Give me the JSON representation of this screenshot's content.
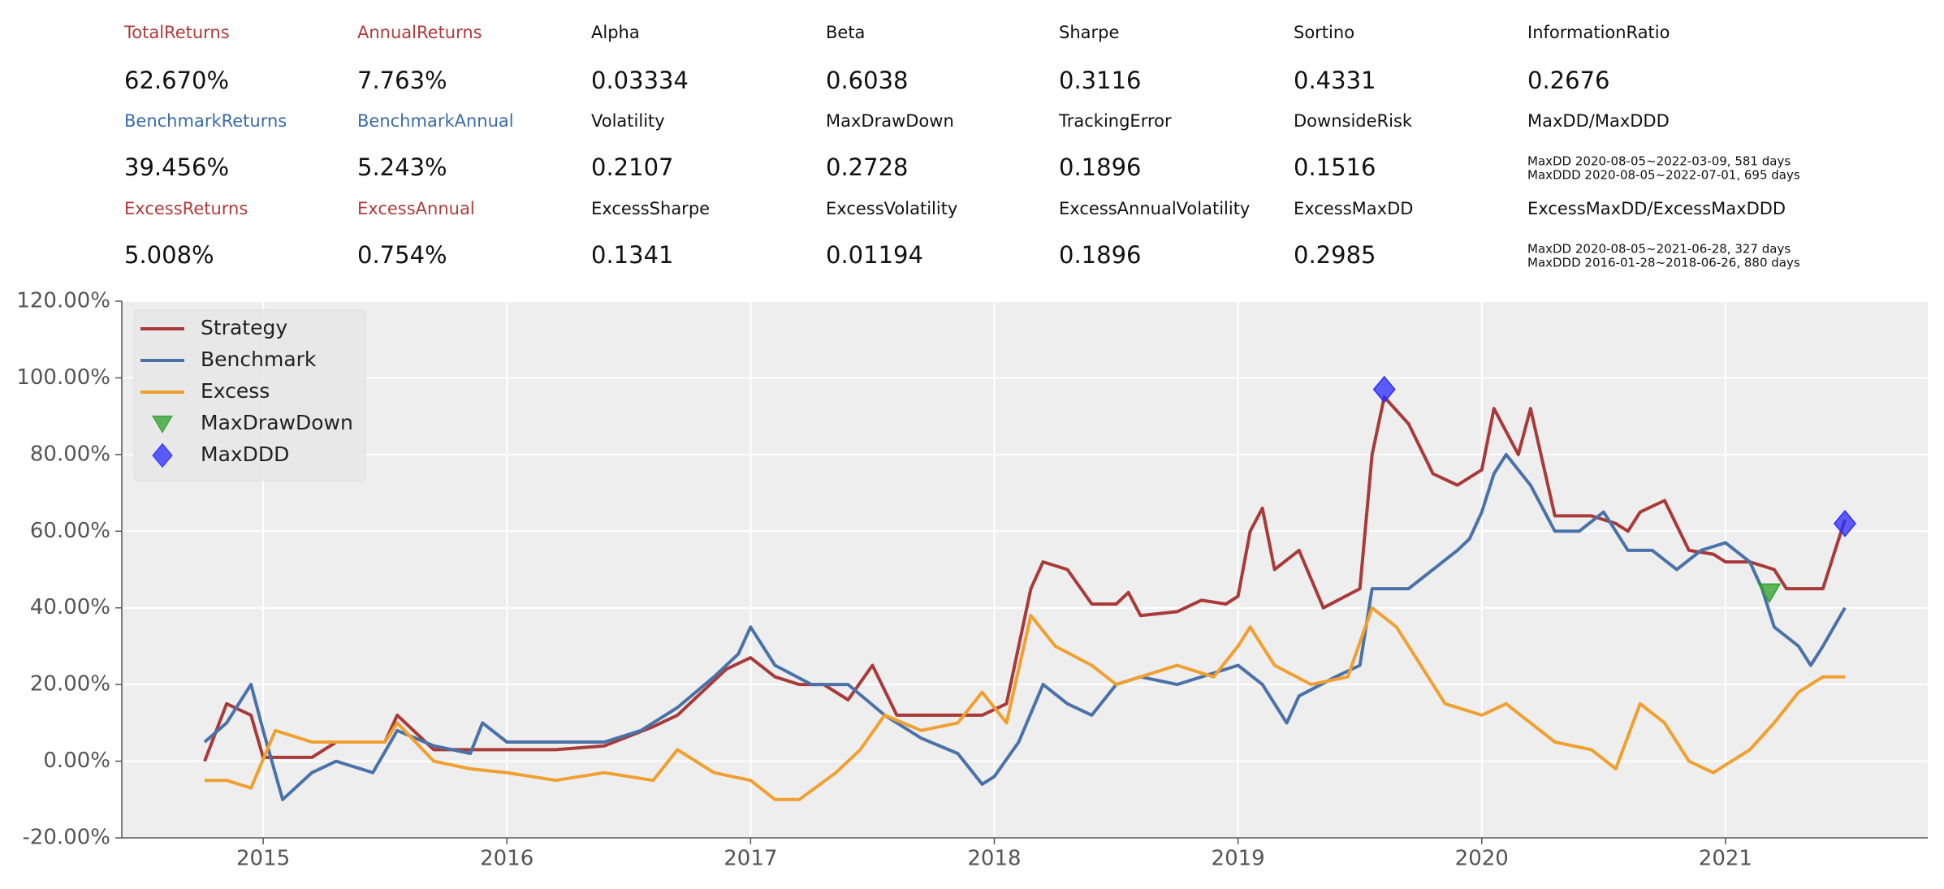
{
  "metrics": [
    [
      {
        "label": "TotalReturns",
        "value": "62.670%"
      },
      {
        "label": "AnnualReturns",
        "value": "7.763%"
      },
      {
        "label": "Alpha",
        "value": "0.03334"
      },
      {
        "label": "Beta",
        "value": "0.6038"
      },
      {
        "label": "Sharpe",
        "value": "0.3116"
      },
      {
        "label": "Sortino",
        "value": "0.4331"
      },
      {
        "label": "InformationRatio",
        "value": "0.2676"
      }
    ],
    [
      {
        "label": "BenchmarkReturns",
        "value": "39.456%"
      },
      {
        "label": "BenchmarkAnnual",
        "value": "5.243%"
      },
      {
        "label": "Volatility",
        "value": "0.2107"
      },
      {
        "label": "MaxDrawDown",
        "value": "0.2728"
      },
      {
        "label": "TrackingError",
        "value": "0.1896"
      },
      {
        "label": "DownsideRisk",
        "value": "0.1516"
      },
      {
        "label": "MaxDD/MaxDDD",
        "lines": [
          "MaxDD 2020-08-05~2022-03-09, 581 days",
          "MaxDDD 2020-08-05~2022-07-01, 695 days"
        ]
      }
    ],
    [
      {
        "label": "ExcessReturns",
        "value": "5.008%"
      },
      {
        "label": "ExcessAnnual",
        "value": "0.754%"
      },
      {
        "label": "ExcessSharpe",
        "value": "0.1341"
      },
      {
        "label": "ExcessVolatility",
        "value": "0.01194"
      },
      {
        "label": "ExcessAnnualVolatility",
        "value": "0.1896"
      },
      {
        "label": "ExcessMaxDD",
        "value": "0.2985"
      },
      {
        "label": "ExcessMaxDD/ExcessMaxDDD",
        "lines": [
          "MaxDD 2020-08-05~2021-06-28, 327 days",
          "MaxDDD 2016-01-28~2018-06-26, 880 days"
        ]
      }
    ]
  ],
  "chart_data": {
    "type": "line",
    "legend": "upper left",
    "grid": true,
    "xlim": [
      2014.42,
      2021.83
    ],
    "xticks": [
      2015,
      2016,
      2017,
      2018,
      2019,
      2020,
      2021
    ],
    "ylim": [
      -20,
      120
    ],
    "yticks": [
      {
        "value": -20,
        "label": "-20.00%"
      },
      {
        "value": 0,
        "label": "0.00%"
      },
      {
        "value": 20,
        "label": "20.00%"
      },
      {
        "value": 40,
        "label": "40.00%"
      },
      {
        "value": 60,
        "label": "60.00%"
      },
      {
        "value": 80,
        "label": "80.00%"
      },
      {
        "value": 100,
        "label": "100.00%"
      },
      {
        "value": 120,
        "label": "120.00%"
      }
    ],
    "series": [
      {
        "name": "Strategy",
        "color": "#a83a3a",
        "x": [
          2014.76,
          2014.85,
          2014.95,
          2015.0,
          2015.2,
          2015.3,
          2015.5,
          2015.55,
          2015.7,
          2015.9,
          2016.0,
          2016.2,
          2016.4,
          2016.6,
          2016.7,
          2016.8,
          2016.9,
          2017.0,
          2017.1,
          2017.2,
          2017.3,
          2017.4,
          2017.5,
          2017.6,
          2017.8,
          2017.95,
          2018.05,
          2018.15,
          2018.2,
          2018.3,
          2018.4,
          2018.5,
          2018.55,
          2018.6,
          2018.75,
          2018.85,
          2018.95,
          2019.0,
          2019.05,
          2019.1,
          2019.15,
          2019.25,
          2019.35,
          2019.5,
          2019.55,
          2019.6,
          2019.7,
          2019.8,
          2019.9,
          2020.0,
          2020.05,
          2020.15,
          2020.2,
          2020.3,
          2020.45,
          2020.55,
          2020.6,
          2020.65,
          2020.75,
          2020.85,
          2020.95,
          2021.0,
          2021.1,
          2021.2,
          2021.25,
          2021.4,
          2021.45,
          2021.49
        ],
        "values": [
          0,
          15,
          12,
          1,
          1,
          5,
          5,
          12,
          3,
          3,
          3,
          3,
          4,
          9,
          12,
          18,
          24,
          27,
          22,
          20,
          20,
          16,
          25,
          12,
          12,
          12,
          15,
          45,
          52,
          50,
          41,
          41,
          44,
          38,
          39,
          42,
          41,
          43,
          60,
          66,
          50,
          55,
          40,
          45,
          80,
          95,
          88,
          75,
          72,
          76,
          92,
          80,
          92,
          64,
          64,
          62,
          60,
          65,
          68,
          55,
          54,
          52,
          52,
          50,
          45,
          45,
          55,
          63
        ]
      },
      {
        "name": "Benchmark",
        "color": "#4a72a8",
        "x": [
          2014.76,
          2014.85,
          2014.95,
          2015.0,
          2015.08,
          2015.2,
          2015.3,
          2015.45,
          2015.55,
          2015.7,
          2015.85,
          2015.9,
          2016.0,
          2016.2,
          2016.4,
          2016.55,
          2016.7,
          2016.85,
          2016.95,
          2017.0,
          2017.1,
          2017.25,
          2017.4,
          2017.55,
          2017.7,
          2017.85,
          2017.95,
          2018.0,
          2018.1,
          2018.2,
          2018.3,
          2018.4,
          2018.5,
          2018.6,
          2018.75,
          2018.9,
          2019.0,
          2019.1,
          2019.2,
          2019.25,
          2019.4,
          2019.5,
          2019.55,
          2019.6,
          2019.7,
          2019.8,
          2019.9,
          2019.95,
          2020.0,
          2020.05,
          2020.1,
          2020.2,
          2020.3,
          2020.4,
          2020.5,
          2020.6,
          2020.7,
          2020.8,
          2020.9,
          2021.0,
          2021.1,
          2021.15,
          2021.2,
          2021.3,
          2021.35,
          2021.4,
          2021.49
        ],
        "values": [
          5,
          10,
          20,
          8,
          -10,
          -3,
          0,
          -3,
          8,
          4,
          2,
          10,
          5,
          5,
          5,
          8,
          14,
          22,
          28,
          35,
          25,
          20,
          20,
          12,
          6,
          2,
          -6,
          -4,
          5,
          20,
          15,
          12,
          20,
          22,
          20,
          23,
          25,
          20,
          10,
          17,
          22,
          25,
          45,
          45,
          45,
          50,
          55,
          58,
          65,
          75,
          80,
          72,
          60,
          60,
          65,
          55,
          55,
          50,
          55,
          57,
          52,
          45,
          35,
          30,
          25,
          30,
          40
        ]
      },
      {
        "name": "Excess",
        "color": "#f0a030",
        "x": [
          2014.76,
          2014.85,
          2014.95,
          2015.05,
          2015.2,
          2015.35,
          2015.5,
          2015.55,
          2015.7,
          2015.85,
          2016.0,
          2016.2,
          2016.4,
          2016.6,
          2016.7,
          2016.85,
          2017.0,
          2017.1,
          2017.2,
          2017.35,
          2017.45,
          2017.55,
          2017.7,
          2017.85,
          2017.95,
          2018.05,
          2018.15,
          2018.25,
          2018.4,
          2018.5,
          2018.6,
          2018.75,
          2018.9,
          2019.0,
          2019.05,
          2019.15,
          2019.3,
          2019.45,
          2019.55,
          2019.65,
          2019.75,
          2019.85,
          2020.0,
          2020.1,
          2020.2,
          2020.3,
          2020.45,
          2020.55,
          2020.65,
          2020.75,
          2020.85,
          2020.95,
          2021.1,
          2021.2,
          2021.3,
          2021.4,
          2021.49
        ],
        "values": [
          -5,
          -5,
          -7,
          8,
          5,
          5,
          5,
          10,
          0,
          -2,
          -3,
          -5,
          -3,
          -5,
          3,
          -3,
          -5,
          -10,
          -10,
          -3,
          3,
          12,
          8,
          10,
          18,
          10,
          38,
          30,
          25,
          20,
          22,
          25,
          22,
          30,
          35,
          25,
          20,
          22,
          40,
          35,
          25,
          15,
          12,
          15,
          10,
          5,
          3,
          -2,
          15,
          10,
          0,
          -3,
          3,
          10,
          18,
          22,
          22
        ]
      },
      {
        "name": "MaxDrawDown",
        "color": "#2ca02c",
        "marker": "triangle",
        "x": [
          2021.18
        ],
        "values": [
          44
        ]
      },
      {
        "name": "MaxDDD",
        "color": "#2a2aff",
        "marker": "diamond",
        "x": [
          2019.6,
          2021.49
        ],
        "values": [
          97,
          62
        ]
      }
    ]
  }
}
